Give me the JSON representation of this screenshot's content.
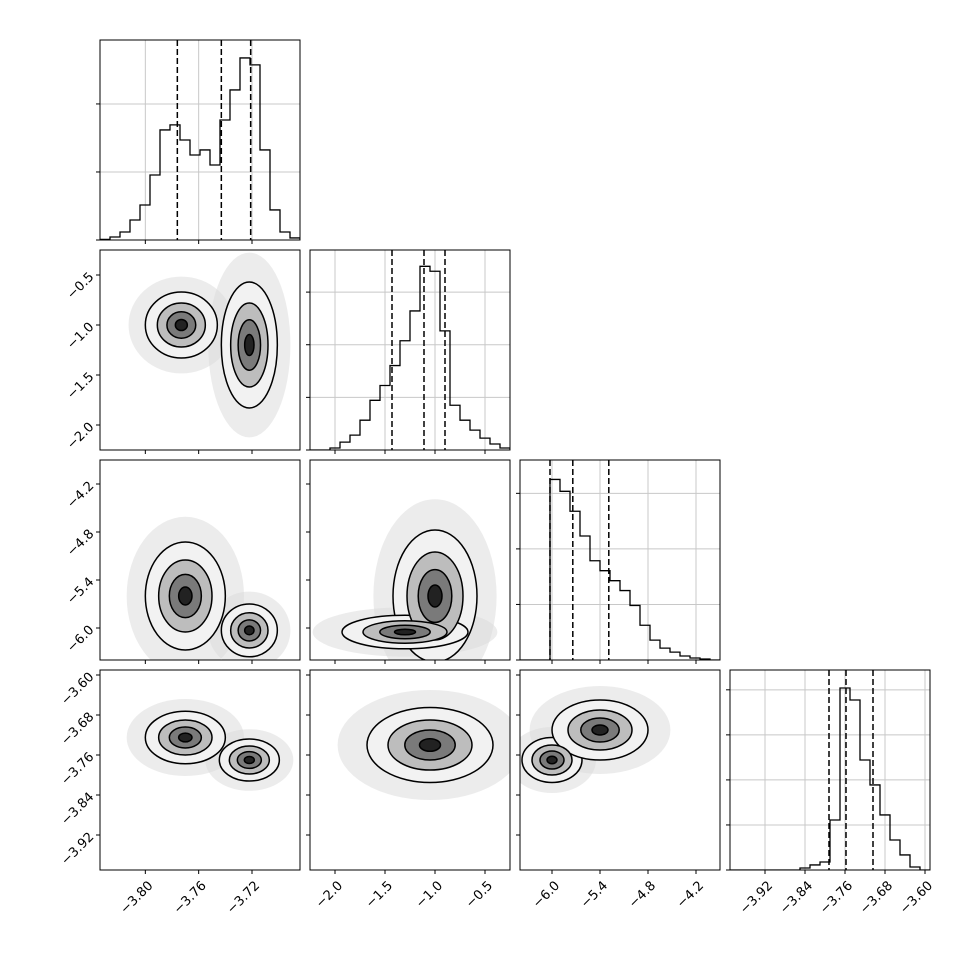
{
  "chart_data": {
    "type": "corner",
    "params": [
      {
        "xlim": [
          -3.834,
          -3.684
        ],
        "ticks": [
          {
            "value": -3.8,
            "label": "−3.80"
          },
          {
            "value": -3.76,
            "label": "−3.76"
          },
          {
            "value": -3.72,
            "label": "−3.72"
          }
        ],
        "bins": [
          -3.834,
          -3.8265,
          -3.819,
          -3.8115,
          -3.804,
          -3.7965,
          -3.789,
          -3.7815,
          -3.774,
          -3.7665,
          -3.759,
          -3.7515,
          -3.744,
          -3.7365,
          -3.729,
          -3.7215,
          -3.714,
          -3.7065,
          -3.699,
          -3.6915,
          -3.684
        ],
        "counts": [
          4,
          22,
          59,
          147,
          257,
          478,
          809,
          846,
          735,
          625,
          662,
          551,
          882,
          1103,
          1338,
          1287,
          662,
          221,
          59,
          15
        ],
        "hist_ylim": [
          0,
          1470
        ],
        "hist_yticks": [
          0,
          500,
          1000
        ],
        "quantiles": [
          -3.776,
          -3.743,
          -3.721
        ]
      },
      {
        "xlim": [
          -2.25,
          -0.25
        ],
        "ticks": [
          {
            "value": -2.0,
            "label": "−2.0"
          },
          {
            "value": -1.5,
            "label": "−1.5"
          },
          {
            "value": -1.0,
            "label": "−1.0"
          },
          {
            "value": -0.5,
            "label": "−0.5"
          }
        ],
        "bins": [
          -2.25,
          -2.15,
          -2.05,
          -1.95,
          -1.85,
          -1.75,
          -1.65,
          -1.55,
          -1.45,
          -1.35,
          -1.25,
          -1.15,
          -1.05,
          -0.95,
          -0.85,
          -0.75,
          -0.65,
          -0.55,
          -0.45,
          -0.35,
          -0.25
        ],
        "counts": [
          0,
          0,
          19,
          75,
          141,
          283,
          472,
          613,
          802,
          1038,
          1321,
          1745,
          1698,
          1132,
          425,
          283,
          189,
          113,
          57,
          19
        ],
        "hist_ylim": [
          0,
          1900
        ],
        "hist_yticks": [
          0,
          500,
          1000,
          1500
        ],
        "quantiles": [
          -1.43,
          -1.11,
          -0.9
        ]
      },
      {
        "xlim": [
          -6.4,
          -3.9
        ],
        "ticks": [
          {
            "value": -6.0,
            "label": "−6.0"
          },
          {
            "value": -5.4,
            "label": "−5.4"
          },
          {
            "value": -4.8,
            "label": "−4.8"
          },
          {
            "value": -4.2,
            "label": "−4.2"
          }
        ],
        "bins": [
          -6.4,
          -6.275,
          -6.15,
          -6.025,
          -5.9,
          -5.775,
          -5.65,
          -5.525,
          -5.4,
          -5.275,
          -5.15,
          -5.025,
          -4.9,
          -4.775,
          -4.65,
          -4.525,
          -4.4,
          -4.275,
          -4.15,
          -4.025,
          -3.9
        ],
        "counts": [
          0,
          0,
          0,
          1625,
          1518,
          1339,
          1116,
          893,
          804,
          714,
          625,
          491,
          313,
          179,
          107,
          71,
          36,
          18,
          9,
          0
        ],
        "hist_ylim": [
          0,
          1800
        ],
        "hist_yticks": [
          0,
          500,
          1000,
          1500
        ],
        "quantiles": [
          -6.025,
          -5.74,
          -5.29
        ]
      },
      {
        "xlim": [
          -3.99,
          -3.59
        ],
        "ticks": [
          {
            "value": -3.92,
            "label": "−3.92"
          },
          {
            "value": -3.84,
            "label": "−3.84"
          },
          {
            "value": -3.76,
            "label": "−3.76"
          },
          {
            "value": -3.68,
            "label": "−3.68"
          },
          {
            "value": -3.6,
            "label": "−3.60"
          }
        ],
        "bins": [
          -3.99,
          -3.97,
          -3.95,
          -3.93,
          -3.91,
          -3.89,
          -3.87,
          -3.85,
          -3.83,
          -3.81,
          -3.79,
          -3.77,
          -3.75,
          -3.73,
          -3.71,
          -3.69,
          -3.67,
          -3.65,
          -3.63,
          -3.61,
          -3.59
        ],
        "counts": [
          0,
          0,
          0,
          0,
          0,
          0,
          0,
          22,
          56,
          89,
          555,
          2020,
          1887,
          1221,
          944,
          611,
          333,
          167,
          33,
          0
        ],
        "hist_ylim": [
          0,
          2220
        ],
        "hist_yticks": [
          0,
          500,
          1000,
          1500,
          2000
        ],
        "quantiles": [
          -3.792,
          -3.758,
          -3.704
        ]
      }
    ],
    "pairs": [
      {
        "x": 0,
        "y": 1,
        "modes": [
          {
            "x": -3.773,
            "y": -1.0,
            "sx": 0.018,
            "sy": 0.22
          },
          {
            "x": -3.722,
            "y": -1.2,
            "sx": 0.014,
            "sy": 0.42
          }
        ]
      },
      {
        "x": 0,
        "y": 2,
        "modes": [
          {
            "x": -3.77,
            "y": -5.6,
            "sx": 0.02,
            "sy": 0.45
          },
          {
            "x": -3.722,
            "y": -6.03,
            "sx": 0.014,
            "sy": 0.22
          }
        ]
      },
      {
        "x": 1,
        "y": 2,
        "modes": [
          {
            "x": -1.0,
            "y": -5.6,
            "sx": 0.28,
            "sy": 0.55
          },
          {
            "x": -1.3,
            "y": -6.05,
            "sx": 0.42,
            "sy": 0.14
          }
        ]
      },
      {
        "x": 0,
        "y": 3,
        "modes": [
          {
            "x": -3.77,
            "y": -3.725,
            "sx": 0.02,
            "sy": 0.035
          },
          {
            "x": -3.722,
            "y": -3.77,
            "sx": 0.015,
            "sy": 0.028
          }
        ]
      },
      {
        "x": 1,
        "y": 3,
        "modes": [
          {
            "x": -1.05,
            "y": -3.74,
            "sx": 0.42,
            "sy": 0.05
          }
        ]
      },
      {
        "x": 2,
        "y": 3,
        "modes": [
          {
            "x": -6.0,
            "y": -3.77,
            "sx": 0.25,
            "sy": 0.03
          },
          {
            "x": -5.4,
            "y": -3.71,
            "sx": 0.4,
            "sy": 0.04
          }
        ]
      }
    ]
  }
}
